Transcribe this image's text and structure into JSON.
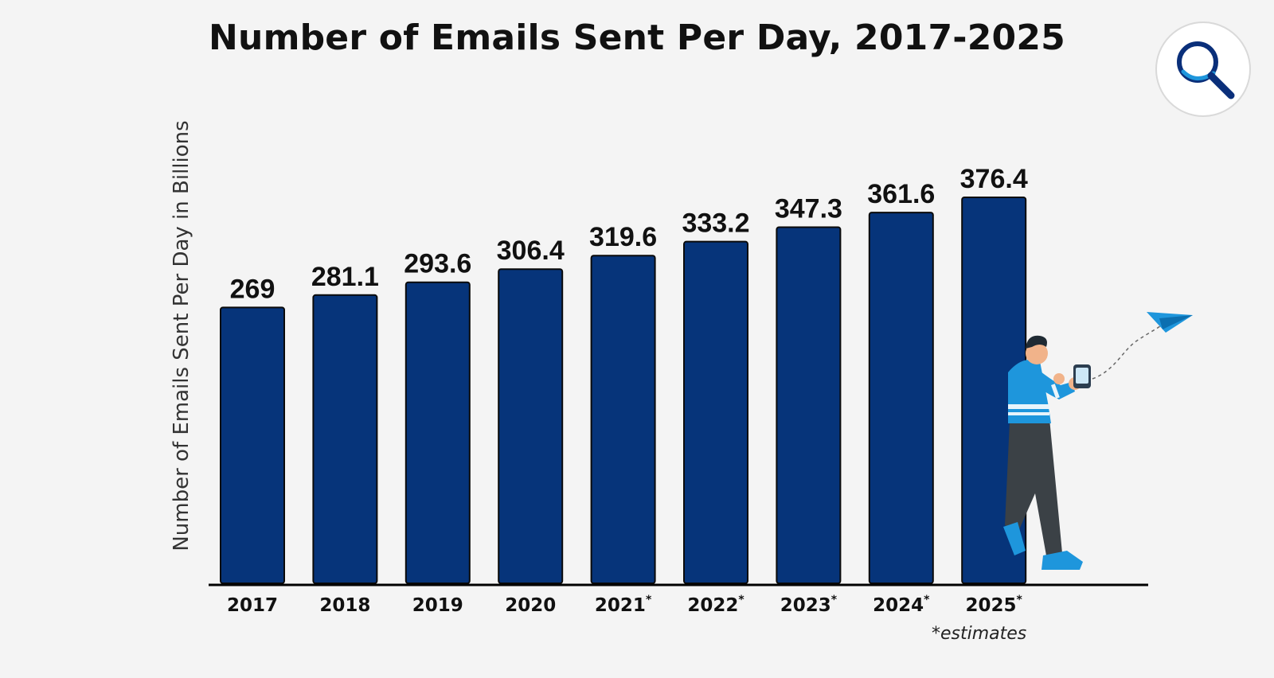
{
  "chart_data": {
    "type": "bar",
    "title": "Number of Emails Sent Per Day, 2017-2025",
    "ylabel": "Number of Emails Sent Per Day in Billions",
    "xlabel": "",
    "categories": [
      "2017",
      "2018",
      "2019",
      "2020",
      "2021",
      "2022",
      "2023",
      "2024",
      "2025"
    ],
    "estimate_marks": [
      "",
      "",
      "",
      "",
      "*",
      "*",
      "*",
      "*",
      "*"
    ],
    "values": [
      269,
      281.1,
      293.6,
      306.4,
      319.6,
      333.2,
      347.3,
      361.6,
      376.4
    ],
    "value_labels": [
      "269",
      "281.1",
      "293.6",
      "306.4",
      "319.6",
      "333.2",
      "347.3",
      "361.6",
      "376.4"
    ],
    "ylim": [
      0,
      376.4
    ],
    "grid": false,
    "bar_color": "#06347a",
    "footnote": "*estimates"
  },
  "icons": {
    "logo": "magnifier-icon",
    "decoration": "paper-plane-icon"
  },
  "colors": {
    "accent": "#1e96dc",
    "background": "#f4f4f4"
  }
}
